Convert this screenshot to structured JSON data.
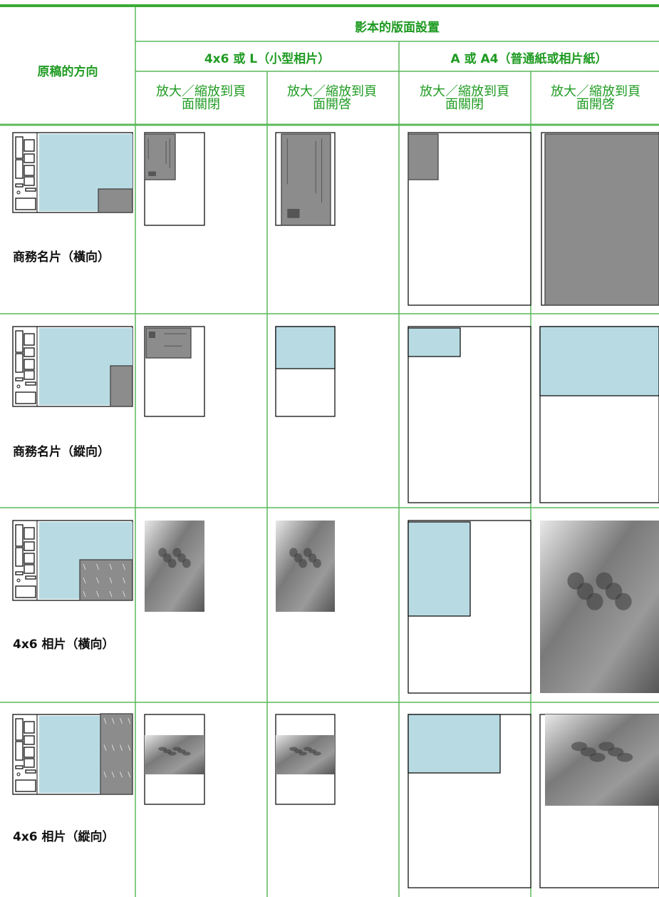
{
  "header": {
    "corner": "原稿的方向",
    "title": "影本的版面設置",
    "groups": [
      "4x6 或 L（小型相片）",
      "A 或 A4（普通紙或相片紙）"
    ],
    "settings": [
      "放大／縮放到頁面關閉",
      "放大／縮放到頁面開啓",
      "放大／縮放到頁面關閉",
      "放大／縮放到頁面開啓"
    ]
  },
  "rows": [
    {
      "label": "商務名片（橫向）"
    },
    {
      "label": "商務名片（縱向）"
    },
    {
      "label": "4x6 相片（橫向）"
    },
    {
      "label": "4x6 相片（縱向）"
    }
  ]
}
